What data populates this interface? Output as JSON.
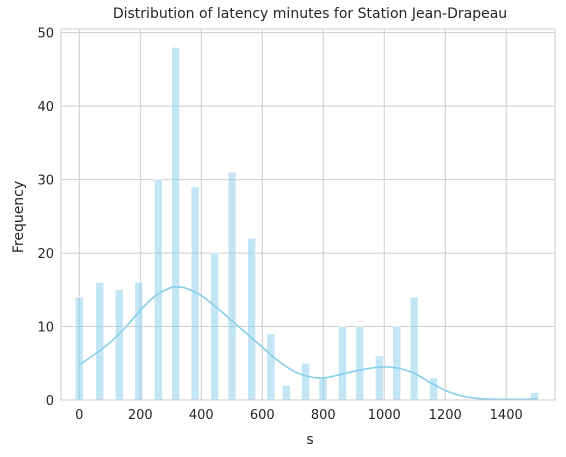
{
  "chart_data": {
    "type": "bar",
    "title": "Distribution of latency minutes for Station Jean-Drapeau",
    "xlabel": "s",
    "ylabel": "Frequency",
    "xlim": [
      -60,
      1560
    ],
    "ylim": [
      0,
      50.5
    ],
    "xticks": [
      0,
      200,
      400,
      600,
      800,
      1000,
      1200,
      1400
    ],
    "yticks": [
      0,
      10,
      20,
      30,
      40,
      50
    ],
    "grid": true,
    "bar_color": "#87ceeb",
    "kde_color": "#87ceeb",
    "bins": [
      {
        "x": 0,
        "count": 14
      },
      {
        "x": 67,
        "count": 16
      },
      {
        "x": 131,
        "count": 15
      },
      {
        "x": 195,
        "count": 16
      },
      {
        "x": 259,
        "count": 30
      },
      {
        "x": 316,
        "count": 48
      },
      {
        "x": 380,
        "count": 29
      },
      {
        "x": 444,
        "count": 20
      },
      {
        "x": 501,
        "count": 31
      },
      {
        "x": 565,
        "count": 22
      },
      {
        "x": 628,
        "count": 9
      },
      {
        "x": 679,
        "count": 2
      },
      {
        "x": 742,
        "count": 5
      },
      {
        "x": 799,
        "count": 3
      },
      {
        "x": 863,
        "count": 10
      },
      {
        "x": 920,
        "count": 10
      },
      {
        "x": 984,
        "count": 6
      },
      {
        "x": 1041,
        "count": 10
      },
      {
        "x": 1098,
        "count": 14
      },
      {
        "x": 1162,
        "count": 3
      },
      {
        "x": 1493,
        "count": 1
      }
    ],
    "kde": {
      "x": [
        0,
        50,
        100,
        150,
        200,
        250,
        300,
        320,
        350,
        400,
        450,
        500,
        550,
        600,
        650,
        700,
        750,
        800,
        850,
        900,
        950,
        1000,
        1050,
        1100,
        1150,
        1200,
        1250,
        1300,
        1350,
        1400,
        1450,
        1500
      ],
      "y": [
        4.8,
        6.2,
        7.8,
        9.8,
        12.2,
        14.2,
        15.3,
        15.4,
        15.2,
        14.2,
        12.6,
        10.8,
        9.0,
        7.2,
        5.4,
        4.0,
        3.2,
        3.0,
        3.4,
        3.9,
        4.3,
        4.5,
        4.3,
        3.6,
        2.4,
        1.3,
        0.6,
        0.25,
        0.12,
        0.1,
        0.1,
        0.15
      ]
    }
  }
}
